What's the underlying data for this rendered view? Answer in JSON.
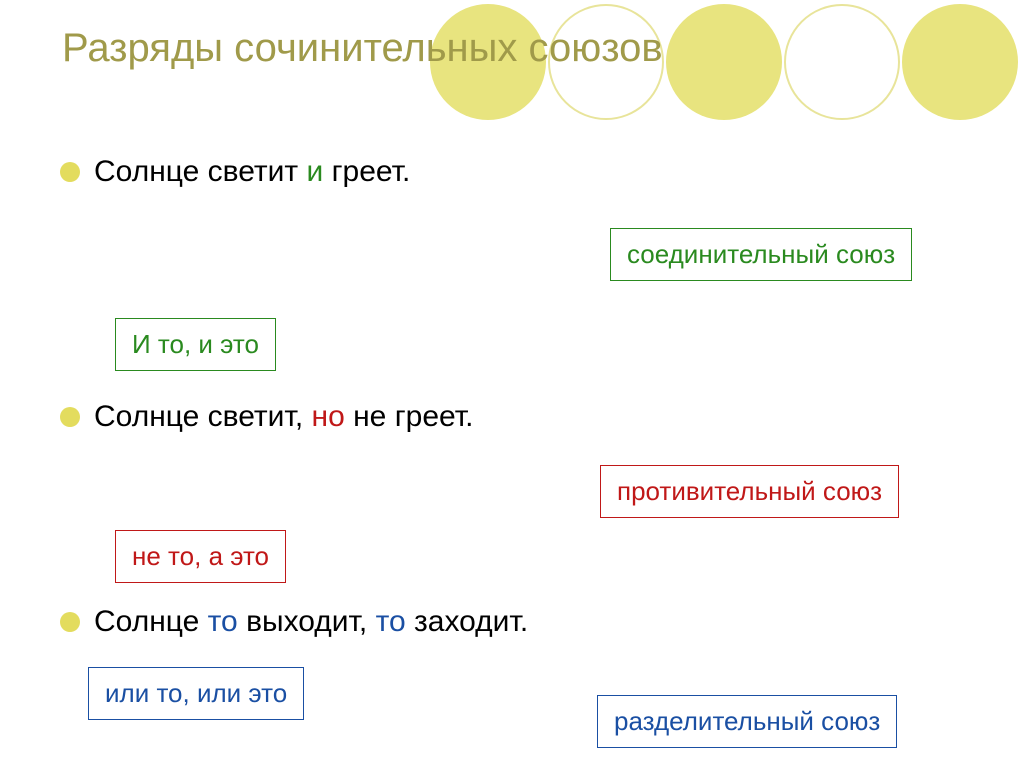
{
  "title": "Разряды сочинительных союзов",
  "circles": {
    "count": 5,
    "outline_color": "#e8e49a",
    "filled_color": "#e8e47f",
    "pattern": [
      "filled",
      "outline",
      "filled",
      "outline",
      "filled"
    ]
  },
  "sentences": [
    {
      "pre": "Солнце светит ",
      "conj": "и",
      "post": " греет.",
      "conj_color": "green"
    },
    {
      "pre": "Солнце светит, ",
      "conj": "но",
      "post": " не греет.",
      "conj_color": "red"
    },
    {
      "pre": "Солнце ",
      "conj": "то",
      "mid": " выходит, ",
      "conj2": "то",
      "post": " заходит.",
      "conj_color": "blue"
    }
  ],
  "labels": {
    "connective": "соединительный союз",
    "adversative": "противительный союз",
    "disjunctive": "разделительный союз"
  },
  "hints": {
    "h1": "И то, и это",
    "h2": "не то, а это",
    "h3": "или то, или это"
  },
  "colors": {
    "green": "#2a8a1f",
    "red": "#c01818",
    "blue": "#1a4fa3",
    "title": "#a09a4a",
    "bullet": "#e3dc5e",
    "background": "#ffffff"
  }
}
